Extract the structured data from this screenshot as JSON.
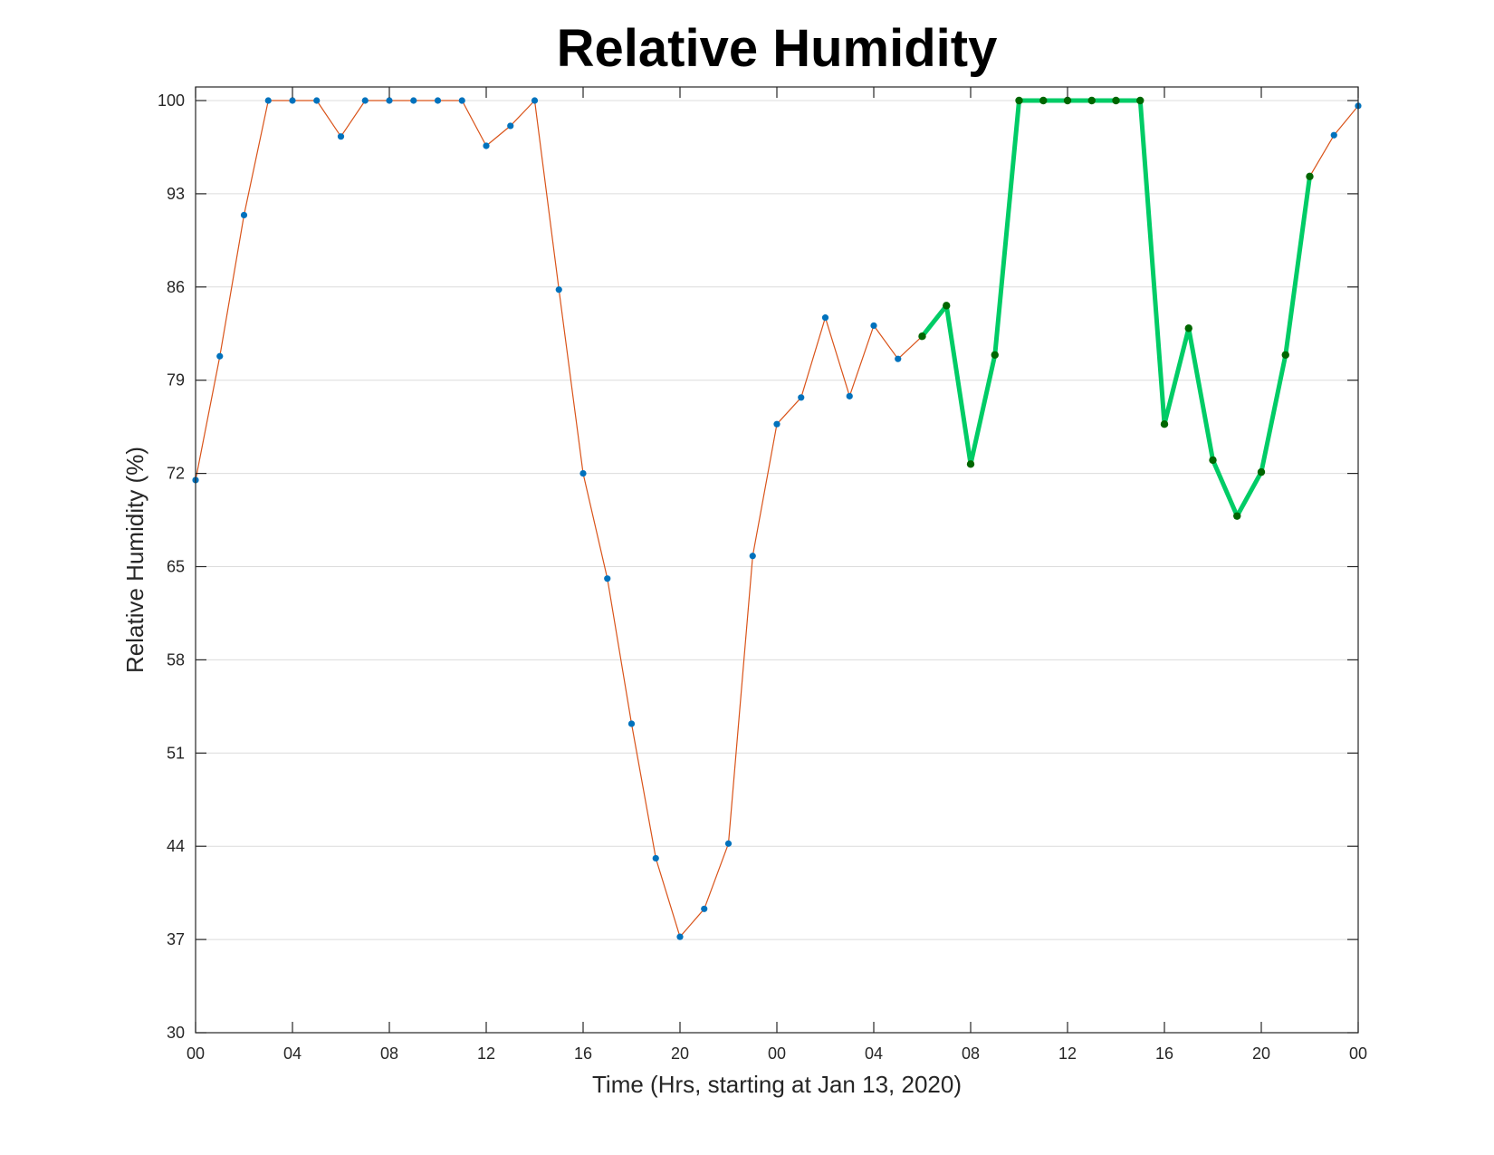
{
  "chart_data": {
    "type": "line",
    "title": "Relative Humidity",
    "xlabel": "Time (Hrs, starting at Jan 13, 2020)",
    "ylabel": "Relative Humidity (%)",
    "xlim": [
      0,
      48
    ],
    "ylim": [
      30,
      100
    ],
    "yticks": [
      30,
      37,
      44,
      51,
      58,
      65,
      72,
      79,
      86,
      93,
      100
    ],
    "xticks": [
      0,
      4,
      8,
      12,
      16,
      20,
      24,
      28,
      32,
      36,
      40,
      44,
      48
    ],
    "xtick_labels": [
      "00",
      "04",
      "08",
      "12",
      "16",
      "20",
      "00",
      "04",
      "08",
      "12",
      "16",
      "20",
      "00"
    ],
    "grid": "horizontal",
    "series": [
      {
        "style": "thin-line-with-markers",
        "line_color": "#d95319",
        "marker_color": "#0072bd",
        "x": [
          0,
          1,
          2,
          3,
          4,
          5,
          6,
          7,
          8,
          9,
          10,
          11,
          12,
          13,
          14,
          15,
          16,
          17,
          18,
          19,
          20,
          21,
          22,
          23,
          24,
          25,
          26,
          27,
          28,
          29,
          30,
          31,
          32,
          33,
          34,
          35,
          36,
          37,
          38,
          39,
          40,
          41,
          42,
          43,
          44,
          45,
          46,
          47,
          48
        ],
        "values": [
          71.5,
          80.8,
          91.4,
          100,
          100,
          100,
          97.3,
          100,
          100,
          100,
          100,
          100,
          96.6,
          98.1,
          100,
          85.8,
          72.0,
          64.1,
          53.2,
          43.1,
          37.2,
          39.3,
          44.2,
          65.8,
          75.7,
          77.7,
          83.7,
          77.8,
          83.1,
          80.6,
          82.3,
          84.6,
          72.7,
          80.9,
          100,
          100,
          100,
          100,
          100,
          100,
          75.7,
          82.9,
          73.0,
          68.8,
          72.1,
          80.9,
          94.3,
          97.4,
          99.6
        ]
      },
      {
        "style": "thick-highlight",
        "line_color": "#00cc66",
        "marker_color": "#006600",
        "x": [
          30,
          31,
          32,
          33,
          34,
          35,
          36,
          37,
          38,
          39,
          40,
          41,
          42,
          43,
          44,
          45,
          46
        ],
        "values": [
          82.3,
          84.6,
          72.7,
          80.9,
          100,
          100,
          100,
          100,
          100,
          100,
          75.7,
          82.9,
          73.0,
          68.8,
          72.1,
          80.9,
          94.3
        ]
      }
    ]
  }
}
